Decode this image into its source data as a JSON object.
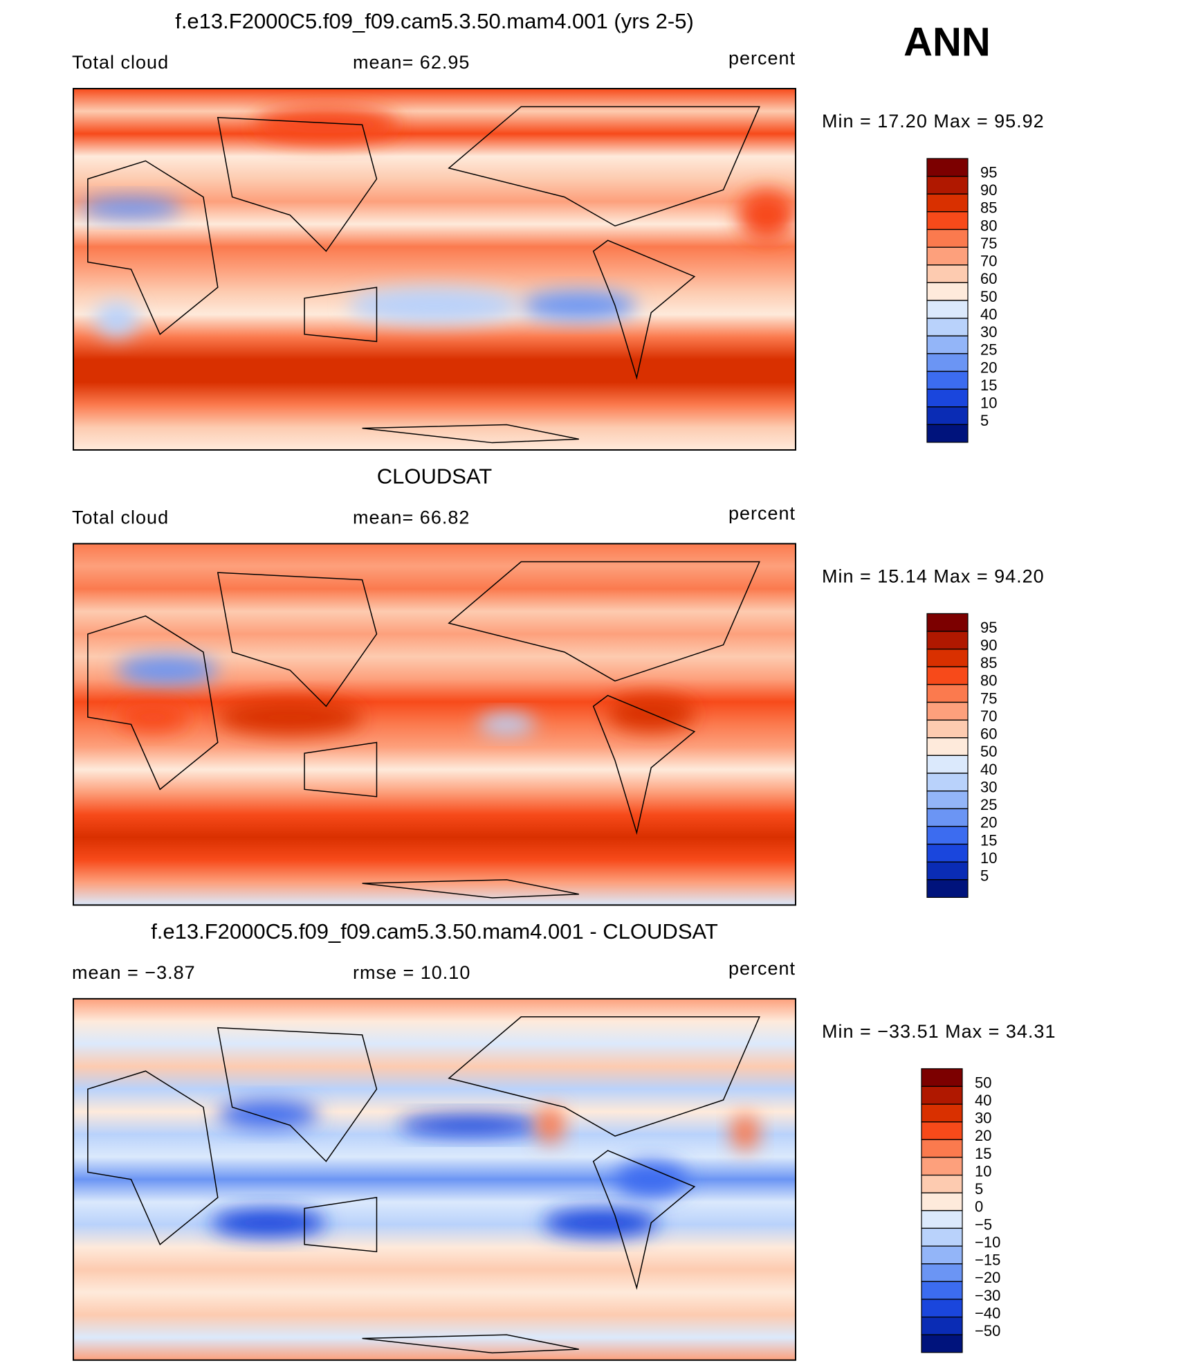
{
  "season": "ANN",
  "colorbar_colors": [
    "#7c0000",
    "#b01800",
    "#d93000",
    "#f74a1a",
    "#fb7a4e",
    "#fda07c",
    "#fdcbb0",
    "#feeadb",
    "#dbe9fc",
    "#b9d2fb",
    "#93b5f8",
    "#6b95f4",
    "#3c6cf0",
    "#1a46dd",
    "#0a2cb5",
    "#00137c"
  ],
  "panels": [
    {
      "title": "f.e13.F2000C5.f09_f09.cam5.3.50.mam4.001 (yrs 2-5)",
      "left": "Total cloud",
      "center": "mean=   62.95",
      "right": "percent",
      "minmax": "Min =   17.20  Max =   95.92",
      "levels": [
        95,
        90,
        85,
        80,
        75,
        70,
        60,
        50,
        40,
        30,
        25,
        20,
        15,
        10,
        5
      ]
    },
    {
      "title": "CLOUDSAT",
      "left": "Total cloud",
      "center": "mean=   66.82",
      "right": "percent",
      "minmax": "Min =   15.14  Max =   94.20",
      "levels": [
        95,
        90,
        85,
        80,
        75,
        70,
        60,
        50,
        40,
        30,
        25,
        20,
        15,
        10,
        5
      ]
    },
    {
      "title": "f.e13.F2000C5.f09_f09.cam5.3.50.mam4.001 - CLOUDSAT",
      "left": "mean =   −3.87",
      "center": "rmse =   10.10",
      "right": "percent",
      "minmax": "Min = −33.51  Max =   34.31",
      "levels": [
        50,
        40,
        30,
        20,
        15,
        10,
        5,
        0,
        {
          "value": -5,
          "label": "−5"
        },
        {
          "value": -10,
          "label": "−10"
        },
        {
          "value": -15,
          "label": "−15"
        },
        {
          "value": -20,
          "label": "−20"
        },
        {
          "value": -30,
          "label": "−30"
        },
        {
          "value": -40,
          "label": "−40"
        },
        {
          "value": -50,
          "label": "−50"
        }
      ]
    }
  ]
}
